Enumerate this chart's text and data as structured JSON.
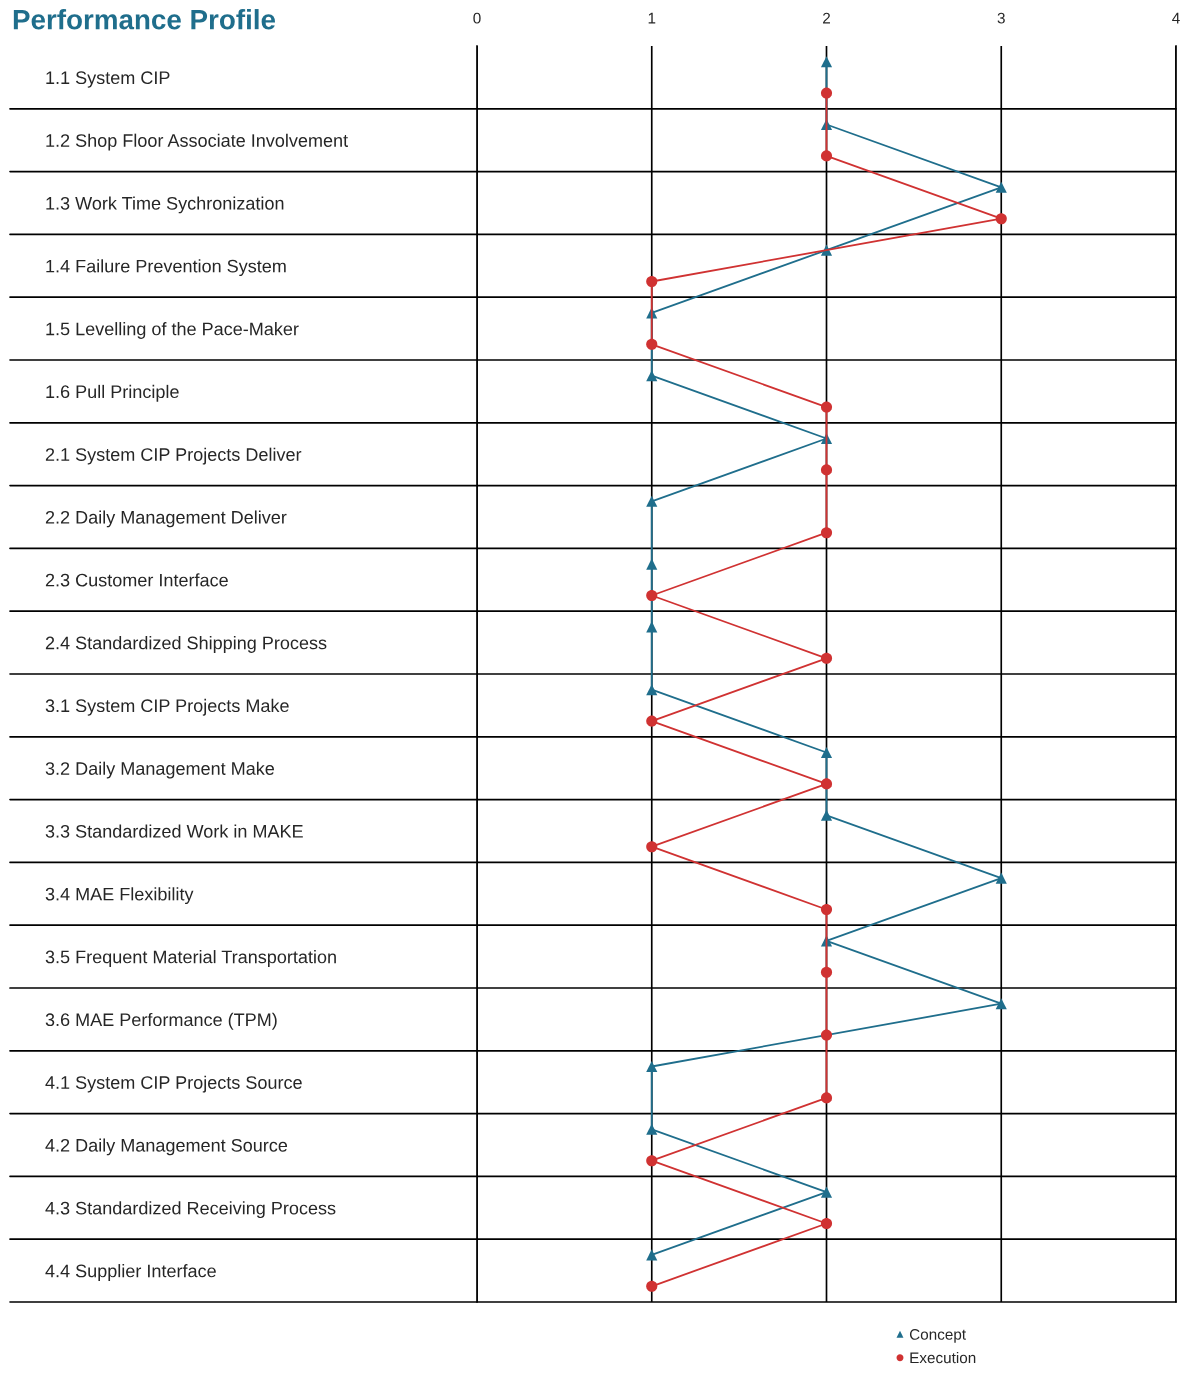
{
  "chart_data": {
    "type": "line",
    "orientation": "horizontal",
    "title": "Performance Profile",
    "categories": [
      "1.1 System CIP",
      "1.2 Shop Floor Associate Involvement",
      "1.3 Work Time Sychronization",
      "1.4 Failure Prevention System",
      "1.5 Levelling of the Pace-Maker",
      "1.6 Pull Principle",
      "2.1 System CIP Projects Deliver",
      "2.2 Daily Management Deliver",
      "2.3 Customer Interface",
      "2.4 Standardized Shipping Process",
      "3.1 System CIP Projects Make",
      "3.2 Daily Management Make",
      "3.3 Standardized Work in MAKE",
      "3.4 MAE Flexibility",
      "3.5 Frequent Material Transportation",
      "3.6 MAE Performance (TPM)",
      "4.1 System CIP Projects Source",
      "4.2 Daily Management Source",
      "4.3 Standardized Receiving Process",
      "4.4 Supplier Interface"
    ],
    "series": [
      {
        "name": "Concept",
        "color": "#1f6e8c",
        "marker": "triangle",
        "values": [
          2,
          2,
          3,
          2,
          1,
          1,
          2,
          1,
          1,
          1,
          1,
          2,
          2,
          3,
          2,
          3,
          1,
          1,
          2,
          1
        ]
      },
      {
        "name": "Execution",
        "color": "#d03232",
        "marker": "circle",
        "values": [
          2,
          2,
          3,
          1,
          1,
          2,
          2,
          2,
          1,
          2,
          1,
          2,
          1,
          2,
          2,
          2,
          2,
          1,
          2,
          1
        ]
      }
    ],
    "xlim": [
      0,
      4
    ],
    "xticks": [
      0,
      1,
      2,
      3,
      4
    ],
    "grid": "x",
    "legend": "bottom right",
    "line_style": "solid"
  }
}
